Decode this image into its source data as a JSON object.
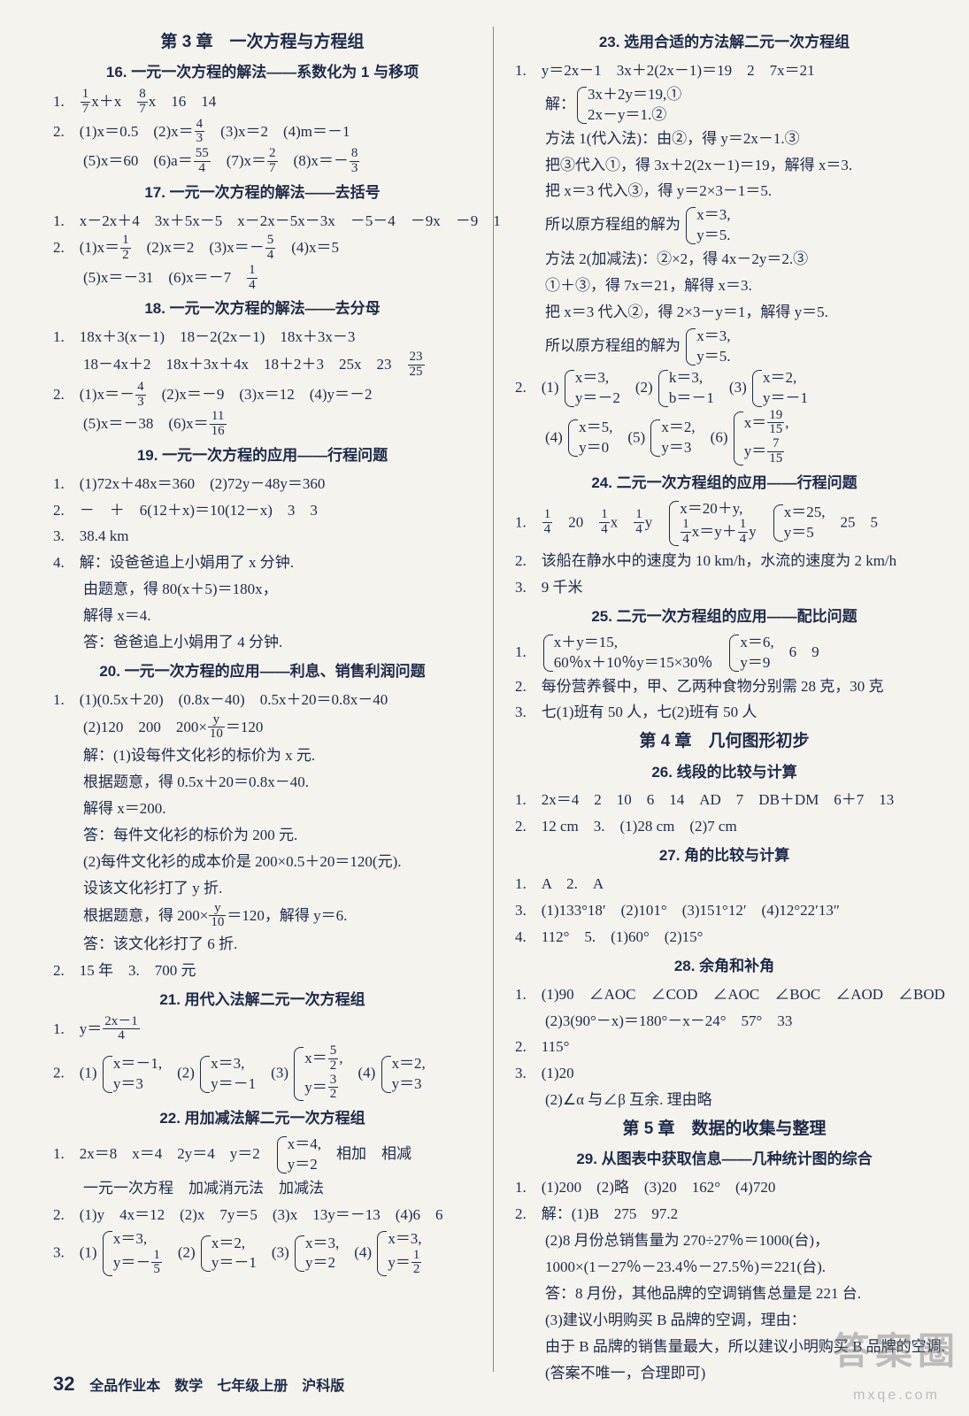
{
  "left": {
    "chapter": "第 3 章　一次方程与方程组",
    "s16": {
      "title": "16. 一元一次方程的解法——系数化为 1 与移项",
      "l1a": "1.　",
      "l1b": "x＋x　",
      "l1c": "x　16　14",
      "l2": "2.　(1)x＝0.5　(2)x＝",
      "l2a": "　(3)x＝2　(4)m＝－1",
      "l3": "(5)x＝60　(6)a＝",
      "l3a": "　(7)x＝",
      "l3b": "　(8)x＝－"
    },
    "s17": {
      "title": "17. 一元一次方程的解法——去括号",
      "l1": "1.　x－2x＋4　3x＋5x－5　x－2x－5x－3x　－5－4　－9x　－9　1",
      "l2": "2.　(1)x＝",
      "l2a": "　(2)x＝2　(3)x＝－",
      "l2b": "　(4)x＝5",
      "l3": "(5)x＝－31　(6)x＝－7　"
    },
    "s18": {
      "title": "18. 一元一次方程的解法——去分母",
      "l1": "1.　18x＋3(x－1)　18－2(2x－1)　18x＋3x－3",
      "l1b": "18－4x＋2　18x＋3x＋4x　18＋2＋3　25x　23　",
      "l2": "2.　(1)x＝－",
      "l2a": "　(2)x＝－9　(3)x＝12　(4)y＝－2",
      "l3": "(5)x＝－38　(6)x＝"
    },
    "s19": {
      "title": "19. 一元一次方程的应用——行程问题",
      "l1": "1.　(1)72x＋48x＝360　(2)72y－48y＝360",
      "l2": "2.　－　＋　6(12＋x)＝10(12－x)　3　3",
      "l3": "3.　38.4 km",
      "l4": "4.　解：设爸爸追上小娟用了 x 分钟.",
      "l5": "由题意，得 80(x＋5)＝180x，",
      "l6": "解得 x＝4.",
      "l7": "答：爸爸追上小娟用了 4 分钟."
    },
    "s20": {
      "title": "20. 一元一次方程的应用——利息、销售利润问题",
      "l1": "1.　(1)(0.5x＋20)　(0.8x－40)　0.5x＋20＝0.8x－40",
      "l2": "(2)120　200　200×",
      "l2a": "＝120",
      "l3": "解：(1)设每件文化衫的标价为 x 元.",
      "l4": "根据题意，得 0.5x＋20＝0.8x－40.",
      "l5": "解得 x＝200.",
      "l6": "答：每件文化衫的标价为 200 元.",
      "l7": "(2)每件文化衫的成本价是 200×0.5＋20＝120(元).",
      "l8": "设该文化衫打了 y 折.",
      "l9": "根据题意，得 200×",
      "l9a": "＝120，解得 y＝6.",
      "l10": "答：该文化衫打了 6 折.",
      "l11": "2.　15 年　3.　700 元"
    },
    "s21": {
      "title": "21. 用代入法解二元一次方程组",
      "l1": "1.　y＝",
      "l2": "2.　(1) ",
      "l2a": "　(2) ",
      "l2b": "　(3) ",
      "l2c": "　(4) "
    },
    "s22": {
      "title": "22. 用加减法解二元一次方程组",
      "l1": "1.　2x＝8　x＝4　2y＝4　y＝2　",
      "l1a": "　相加　相减",
      "l2": "一元一次方程　加减消元法　加减法",
      "l3": "2.　(1)y　4x＝12　(2)x　7y＝5　(3)x　13y＝－13　(4)6　6",
      "l4": "3.　(1) ",
      "l4a": "　(2) ",
      "l4b": "　(3) ",
      "l4c": "　(4) "
    }
  },
  "right": {
    "s23": {
      "title": "23. 选用合适的方法解二元一次方程组",
      "l1": "1.　y＝2x－1　3x＋2(2x－1)＝19　2　7x＝21",
      "l2": "解：",
      "l3": "方法 1(代入法)：由②，得 y＝2x－1.③",
      "l4": "把③代入①，得 3x＋2(2x－1)＝19，解得 x＝3.",
      "l5": "把 x＝3 代入③，得 y＝2×3－1＝5.",
      "l6": "所以原方程组的解为 ",
      "l7": "方法 2(加减法)：②×2，得 4x－2y＝2.③",
      "l8": "①＋③，得 7x＝21，解得 x＝3.",
      "l9": "把 x＝3 代入②，得 2×3－y＝1，解得 y＝5.",
      "l10": "所以原方程组的解为 ",
      "l11": "2.　(1) ",
      "l11a": "　(2) ",
      "l11b": "　(3) ",
      "l12": "(4) ",
      "l12a": "　(5) ",
      "l12b": "　(6) "
    },
    "s24": {
      "title": "24. 二元一次方程组的应用——行程问题",
      "l1": "1.　",
      "l1a": "　20　",
      "l1b": "x　",
      "l1c": "y　",
      "l1d": "　",
      "l1e": "　25　5",
      "l2": "2.　该船在静水中的速度为 10 km/h，水流的速度为 2 km/h",
      "l3": "3.　9 千米"
    },
    "s25": {
      "title": "25. 二元一次方程组的应用——配比问题",
      "l1": "1.　",
      "l1a": "　",
      "l1b": "　6　9",
      "l2": "2.　每份营养餐中，甲、乙两种食物分别需 28 克，30 克",
      "l3": "3.　七(1)班有 50 人，七(2)班有 50 人"
    },
    "ch4": "第 4 章　几何图形初步",
    "s26": {
      "title": "26. 线段的比较与计算",
      "l1": "1.　2x＝4　2　10　6　14　AD　7　DB＋DM　6＋7　13",
      "l2": "2.　12 cm　3.　(1)28 cm　(2)7 cm"
    },
    "s27": {
      "title": "27. 角的比较与计算",
      "l1": "1.　A　2.　A",
      "l2": "3.　(1)133°18′　(2)101°　(3)151°12′　(4)12°22′13″",
      "l3": "4.　112°　5.　(1)60°　(2)15°"
    },
    "s28": {
      "title": "28. 余角和补角",
      "l1": "1.　(1)90　∠AOC　∠COD　∠AOC　∠BOC　∠AOD　∠BOD",
      "l2": "(2)3(90°－x)＝180°－x－24°　57°　33",
      "l3": "2.　115°",
      "l4": "3.　(1)20",
      "l5": "(2)∠α 与∠β 互余. 理由略"
    },
    "ch5": "第 5 章　数据的收集与整理",
    "s29": {
      "title": "29. 从图表中获取信息——几种统计图的综合",
      "l1": "1.　(1)200　(2)略　(3)20　162°　(4)720",
      "l2": "2.　解：(1)B　275　97.2",
      "l3": "(2)8 月份总销售量为 270÷27％＝1000(台)，",
      "l4": "1000×(1－27％－23.4％－27.5％)＝221(台).",
      "l5": "答：8 月份，其他品牌的空调销售总量是 221 台.",
      "l6": "(3)建议小明购买 B 品牌的空调，理由：",
      "l7": "由于 B 品牌的销售量最大，所以建议小明购买 B 品牌的空调.",
      "l8": "(答案不唯一，合理即可)"
    }
  },
  "footer": {
    "page": "32",
    "text": "全品作业本　数学　七年级上册　沪科版"
  },
  "watermark": {
    "big": "答案圈",
    "small": "mxqe.com"
  },
  "fracs": {
    "1_7": [
      "1",
      "7"
    ],
    "8_7": [
      "8",
      "7"
    ],
    "4_3": [
      "4",
      "3"
    ],
    "55_4": [
      "55",
      "4"
    ],
    "2_7": [
      "2",
      "7"
    ],
    "8_3": [
      "8",
      "3"
    ],
    "1_2": [
      "1",
      "2"
    ],
    "5_4": [
      "5",
      "4"
    ],
    "1_4": [
      "1",
      "4"
    ],
    "23_25": [
      "23",
      "25"
    ],
    "11_16": [
      "11",
      "16"
    ],
    "y_10": [
      "y",
      "10"
    ],
    "2x1_4": [
      "2x－1",
      "4"
    ],
    "5_2": [
      "5",
      "2"
    ],
    "3_2": [
      "3",
      "2"
    ],
    "1_5": [
      "1",
      "5"
    ],
    "19_15": [
      "19",
      "15"
    ],
    "7_15": [
      "7",
      "15"
    ]
  }
}
